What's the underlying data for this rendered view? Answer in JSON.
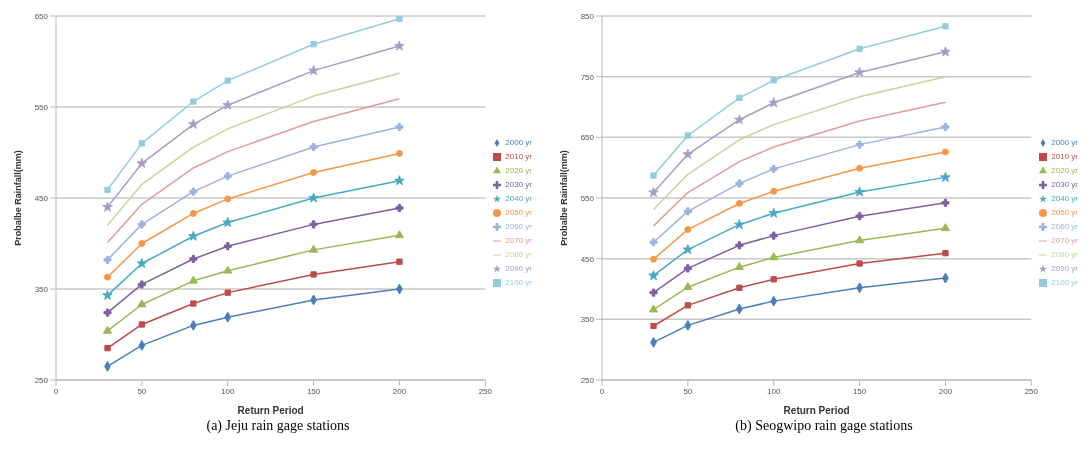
{
  "chart_data": [
    {
      "type": "line",
      "xlabel": "Return Period",
      "ylabel": "Probalbe Rainfall(mm)",
      "annotations": [
        "(a) Jeju rain gage stations"
      ],
      "x": [
        30,
        50,
        80,
        100,
        150,
        200
      ],
      "xlim": [
        0,
        250
      ],
      "xticks": [
        0,
        50,
        100,
        150,
        200,
        250
      ],
      "ylim": [
        250,
        650
      ],
      "yticks": [
        250,
        350,
        450,
        550,
        650
      ],
      "grid": "y",
      "legend": "right",
      "series": [
        {
          "name": "2000 yr",
          "color": "#4a7ebb",
          "marker": "diamond",
          "values": [
            265,
            288,
            310,
            319,
            338,
            350
          ]
        },
        {
          "name": "2010 yr",
          "color": "#be4b48",
          "marker": "square",
          "values": [
            285,
            311,
            334,
            346,
            366,
            380
          ]
        },
        {
          "name": "2020 yr",
          "color": "#98b954",
          "marker": "triangle",
          "values": [
            304,
            333,
            359,
            370,
            393,
            409
          ]
        },
        {
          "name": "2030 yr",
          "color": "#7d60a0",
          "marker": "cross",
          "values": [
            324,
            355,
            383,
            397,
            421,
            439
          ]
        },
        {
          "name": "2040 yr",
          "color": "#46aac5",
          "marker": "star",
          "values": [
            343,
            378,
            408,
            423,
            450,
            469
          ]
        },
        {
          "name": "2050 yr",
          "color": "#f79646",
          "marker": "circle",
          "values": [
            363,
            400,
            433,
            449,
            478,
            499
          ]
        },
        {
          "name": "2060 yr",
          "color": "#9fb2dd",
          "marker": "cross",
          "values": [
            382,
            421,
            457,
            474,
            506,
            528
          ]
        },
        {
          "name": "2070 yr",
          "color": "#e39c9b",
          "marker": "none",
          "values": [
            401,
            443,
            483,
            501,
            534,
            559
          ]
        },
        {
          "name": "2080 yr",
          "color": "#c3d69b",
          "marker": "none",
          "values": [
            420,
            465,
            506,
            526,
            562,
            587
          ]
        },
        {
          "name": "2090 yr",
          "color": "#a99bc6",
          "marker": "star",
          "values": [
            440,
            488,
            531,
            552,
            590,
            617
          ]
        },
        {
          "name": "2100 yr",
          "color": "#93cddd",
          "marker": "square",
          "values": [
            459,
            510,
            556,
            579,
            619,
            647
          ]
        }
      ]
    },
    {
      "type": "line",
      "xlabel": "Return Period",
      "ylabel": "Probalbe Rainfall(mm)",
      "annotations": [
        "(b) Seogwipo rain gage stations"
      ],
      "x": [
        30,
        50,
        80,
        100,
        150,
        200
      ],
      "xlim": [
        0,
        250
      ],
      "xticks": [
        0,
        50,
        100,
        150,
        200,
        250
      ],
      "ylim": [
        250,
        850
      ],
      "yticks": [
        250,
        350,
        450,
        550,
        650,
        750,
        850
      ],
      "grid": "y",
      "legend": "right",
      "series": [
        {
          "name": "2100 yr",
          "color": "#93cddd",
          "marker": "square",
          "values": [
            587,
            653,
            715,
            744,
            796,
            833
          ]
        },
        {
          "name": "2090 yr",
          "color": "#a99bc6",
          "marker": "star",
          "values": [
            559,
            622,
            679,
            707,
            757,
            791
          ]
        },
        {
          "name": "2080 yr",
          "color": "#c3d69b",
          "marker": "none",
          "values": [
            531,
            589,
            646,
            671,
            717,
            750
          ]
        },
        {
          "name": "2070 yr",
          "color": "#e39c9b",
          "marker": "none",
          "values": [
            504,
            559,
            610,
            634,
            677,
            708
          ]
        },
        {
          "name": "2060 yr",
          "color": "#9fb2dd",
          "marker": "cross",
          "values": [
            477,
            528,
            574,
            598,
            638,
            667
          ]
        },
        {
          "name": "2050 yr",
          "color": "#f79646",
          "marker": "circle",
          "values": [
            449,
            498,
            541,
            561,
            599,
            626
          ]
        },
        {
          "name": "2040 yr",
          "color": "#46aac5",
          "marker": "star",
          "values": [
            422,
            465,
            506,
            525,
            560,
            584
          ]
        },
        {
          "name": "2030 yr",
          "color": "#7d60a0",
          "marker": "cross",
          "values": [
            394,
            434,
            472,
            488,
            520,
            542
          ]
        },
        {
          "name": "2020 yr",
          "color": "#98b954",
          "marker": "triangle",
          "values": [
            366,
            403,
            436,
            452,
            480,
            500
          ]
        },
        {
          "name": "2010 yr",
          "color": "#be4b48",
          "marker": "square",
          "values": [
            339,
            373,
            402,
            416,
            442,
            459
          ]
        },
        {
          "name": "2000 yr",
          "color": "#4a7ebb",
          "marker": "diamond",
          "values": [
            312,
            340,
            367,
            380,
            402,
            418
          ]
        }
      ]
    }
  ]
}
